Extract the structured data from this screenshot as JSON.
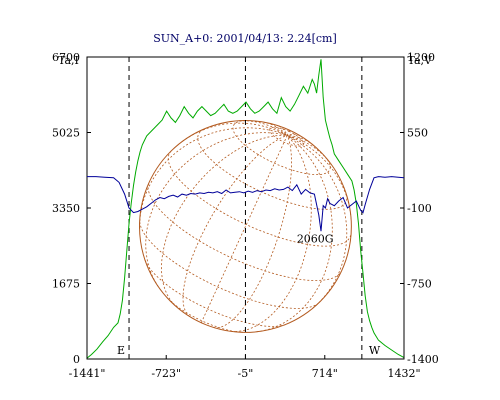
{
  "chart_data": {
    "type": "line",
    "title": "SUN_A+0: 2001/04/13: 2.24[cm]",
    "left_axis": {
      "label": "Ta,I",
      "ylim": [
        0,
        6700
      ],
      "ticks": [
        0,
        1675,
        3350,
        5025,
        6700
      ],
      "tick_labels": [
        "0",
        "1675",
        "3350",
        "5025",
        "6700"
      ]
    },
    "right_axis": {
      "label": "Ta,V",
      "ylim": [
        -1400,
        1200
      ],
      "ticks": [
        -1400,
        -750,
        -100,
        550,
        1200
      ],
      "tick_labels": [
        "-1400",
        "-750",
        "-100",
        "550",
        "1200"
      ]
    },
    "x_axis": {
      "xlim": [
        -1441,
        1432
      ],
      "ticks": [
        -1441,
        -723,
        -5,
        714,
        1432
      ],
      "tick_labels": [
        "-1441\"",
        "-723\"",
        "-5\"",
        "714\"",
        "1432\""
      ]
    },
    "vertical_markers": [
      {
        "x": -1060,
        "label": "E"
      },
      {
        "x": -5,
        "label": ""
      },
      {
        "x": 1050,
        "label": "W"
      }
    ],
    "annotation": {
      "text": "2060G",
      "x": 660,
      "y_left": 2580
    },
    "disk": {
      "center_x": -5,
      "center_y_left": 2940,
      "radius_arcsec": 960
    },
    "colors": {
      "intensity": "#00aa00",
      "polarization": "#000099",
      "disk": "#b35a1f",
      "frame": "#000000",
      "title": "#000066"
    },
    "series": [
      {
        "name": "",
        "axis": "left",
        "color": "#00aa00",
        "x": [
          -1441,
          -1400,
          -1350,
          -1300,
          -1250,
          -1200,
          -1160,
          -1140,
          -1120,
          -1100,
          -1080,
          -1060,
          -1040,
          -1020,
          -1000,
          -980,
          -960,
          -940,
          -920,
          -900,
          -880,
          -860,
          -840,
          -820,
          -800,
          -760,
          -720,
          -680,
          -640,
          -600,
          -560,
          -520,
          -480,
          -440,
          -400,
          -360,
          -320,
          -280,
          -240,
          -200,
          -160,
          -120,
          -80,
          -40,
          0,
          40,
          80,
          120,
          160,
          200,
          240,
          280,
          320,
          360,
          400,
          440,
          480,
          520,
          560,
          600,
          620,
          640,
          660,
          680,
          700,
          720,
          740,
          760,
          780,
          800,
          840,
          880,
          920,
          960,
          980,
          1000,
          1020,
          1040,
          1060,
          1080,
          1100,
          1120,
          1140,
          1160,
          1200,
          1260,
          1320,
          1380,
          1432
        ],
        "y": [
          20,
          100,
          220,
          380,
          520,
          700,
          800,
          1000,
          1300,
          1800,
          2400,
          3000,
          3450,
          3850,
          4150,
          4400,
          4600,
          4750,
          4850,
          4950,
          5000,
          5050,
          5100,
          5150,
          5200,
          5300,
          5500,
          5350,
          5250,
          5400,
          5600,
          5450,
          5350,
          5500,
          5600,
          5500,
          5400,
          5450,
          5550,
          5650,
          5500,
          5450,
          5500,
          5600,
          5700,
          5550,
          5450,
          5500,
          5600,
          5700,
          5550,
          5450,
          5800,
          5600,
          5500,
          5650,
          5850,
          6050,
          5900,
          6200,
          6100,
          5900,
          6300,
          6650,
          5800,
          5300,
          5100,
          4900,
          4750,
          4550,
          4400,
          4250,
          4100,
          3950,
          3750,
          3450,
          3000,
          2400,
          1900,
          1400,
          1050,
          850,
          700,
          580,
          420,
          300,
          200,
          100,
          30
        ]
      },
      {
        "name": "",
        "axis": "right",
        "color": "#000099",
        "x": [
          -1441,
          -1360,
          -1280,
          -1200,
          -1150,
          -1100,
          -1060,
          -1020,
          -980,
          -940,
          -900,
          -860,
          -820,
          -780,
          -740,
          -700,
          -660,
          -620,
          -580,
          -540,
          -500,
          -460,
          -420,
          -380,
          -340,
          -300,
          -260,
          -220,
          -180,
          -140,
          -100,
          -60,
          -20,
          20,
          60,
          100,
          140,
          180,
          220,
          260,
          300,
          340,
          380,
          420,
          460,
          500,
          540,
          580,
          620,
          660,
          680,
          700,
          720,
          740,
          760,
          800,
          840,
          880,
          920,
          960,
          1000,
          1040,
          1060,
          1080,
          1120,
          1160,
          1200,
          1260,
          1320,
          1380,
          1432
        ],
        "y": [
          170,
          170,
          165,
          160,
          120,
          20,
          -100,
          -140,
          -130,
          -110,
          -90,
          -60,
          -30,
          -10,
          -20,
          0,
          10,
          -5,
          20,
          10,
          25,
          20,
          30,
          25,
          35,
          30,
          40,
          25,
          55,
          30,
          35,
          40,
          30,
          45,
          35,
          50,
          40,
          55,
          50,
          65,
          55,
          60,
          80,
          50,
          100,
          20,
          60,
          30,
          20,
          -160,
          -300,
          -80,
          -100,
          -20,
          -60,
          -80,
          -40,
          -10,
          -100,
          -70,
          -40,
          -120,
          -140,
          -70,
          60,
          160,
          170,
          165,
          170,
          165,
          160
        ]
      }
    ]
  }
}
